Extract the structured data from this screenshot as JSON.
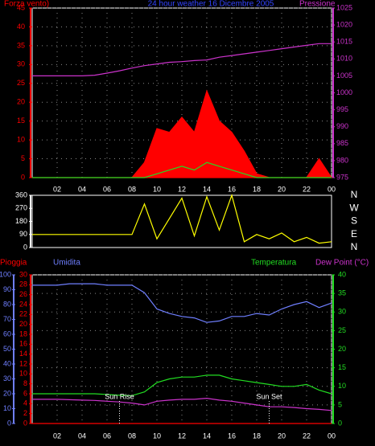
{
  "chart_data": [
    {
      "type": "line",
      "title": "24 hour weather 16 Dicembre 2005",
      "x": [
        0,
        1,
        2,
        3,
        4,
        5,
        6,
        7,
        8,
        9,
        10,
        11,
        12,
        13,
        14,
        15,
        16,
        17,
        18,
        19,
        20,
        21,
        22,
        23,
        24
      ],
      "xlim": [
        0,
        24
      ],
      "xticks": [
        {
          "value": 2,
          "label": "02"
        },
        {
          "value": 4,
          "label": "04"
        },
        {
          "value": 6,
          "label": "06"
        },
        {
          "value": 8,
          "label": "08"
        },
        10,
        12,
        14,
        16,
        18,
        20,
        22,
        {
          "value": 24,
          "label": "00"
        }
      ],
      "ylim": [
        0,
        45
      ],
      "yticks": [
        0,
        5,
        10,
        15,
        20,
        25,
        30,
        35,
        40,
        45
      ],
      "yaxis_color": "#ff0000",
      "y2lim": [
        975,
        1025
      ],
      "y2ticks": [
        975,
        980,
        985,
        990,
        995,
        1000,
        1005,
        1010,
        1015,
        1020,
        1025
      ],
      "y2axis_color": "#cc33cc",
      "grid": "y",
      "series": [
        {
          "name": "Forza vento)",
          "color": "#ff0000",
          "kind": "area",
          "axis": "y",
          "values": [
            0,
            0,
            0,
            0,
            0,
            0,
            0,
            0,
            0,
            4,
            13,
            12,
            16,
            12,
            23,
            15,
            12,
            7,
            1,
            0,
            0,
            0,
            0,
            5,
            0
          ]
        },
        {
          "color": "#22dd22",
          "kind": "line",
          "axis": "y",
          "values": [
            0,
            0,
            0,
            0,
            0,
            0,
            0,
            0,
            0,
            0,
            1,
            2,
            3,
            2,
            4,
            3,
            2,
            1,
            0,
            0,
            0,
            0,
            0,
            0,
            0
          ]
        },
        {
          "name": "Pressione",
          "color": "#cc33cc",
          "kind": "line",
          "axis": "y2",
          "values": [
            1005,
            1005,
            1005,
            1005,
            1005,
            1005.2,
            1005.8,
            1006.5,
            1007.3,
            1008,
            1008.5,
            1009,
            1009.2,
            1009.5,
            1009.7,
            1010.5,
            1011,
            1011.5,
            1012,
            1012.5,
            1013,
            1013.5,
            1014,
            1014.5,
            1014.5
          ]
        }
      ]
    },
    {
      "type": "line",
      "x": [
        0,
        1,
        2,
        3,
        4,
        5,
        6,
        7,
        8,
        9,
        10,
        11,
        12,
        13,
        14,
        15,
        16,
        17,
        18,
        19,
        20,
        21,
        22,
        23,
        24
      ],
      "xlim": [
        0,
        24
      ],
      "ylim": [
        0,
        360
      ],
      "yticks": [
        0,
        90,
        180,
        270,
        360
      ],
      "yaxis_color": "#ffffff",
      "y2lim": [
        0,
        360
      ],
      "y2ticks": [
        {
          "value": 0,
          "label": "N"
        },
        {
          "value": 90,
          "label": "E"
        },
        {
          "value": 180,
          "label": "S"
        },
        {
          "value": 270,
          "label": "W"
        },
        {
          "value": 360,
          "label": "N"
        }
      ],
      "y2axis_color": "#ffffff",
      "series": [
        {
          "color": "#ffff00",
          "kind": "line",
          "axis": "y",
          "values": [
            90,
            90,
            90,
            90,
            90,
            90,
            90,
            90,
            90,
            300,
            60,
            200,
            340,
            80,
            350,
            120,
            360,
            40,
            90,
            60,
            100,
            40,
            70,
            30,
            40
          ]
        }
      ]
    },
    {
      "type": "line",
      "x": [
        0,
        1,
        2,
        3,
        4,
        5,
        6,
        7,
        8,
        9,
        10,
        11,
        12,
        13,
        14,
        15,
        16,
        17,
        18,
        19,
        20,
        21,
        22,
        23,
        24
      ],
      "xlim": [
        0,
        24
      ],
      "xticks": [
        {
          "value": 2,
          "label": "02"
        },
        {
          "value": 4,
          "label": "04"
        },
        {
          "value": 6,
          "label": "06"
        },
        {
          "value": 8,
          "label": "08"
        },
        10,
        12,
        14,
        16,
        18,
        20,
        22,
        {
          "value": 24,
          "label": "00"
        }
      ],
      "ylim": [
        0,
        30
      ],
      "yticks": [
        0,
        2,
        4,
        6,
        8,
        10,
        12,
        14,
        16,
        18,
        20,
        22,
        24,
        26,
        28,
        30
      ],
      "yaxis_color": "#ff0000",
      "y2lim": [
        0,
        40
      ],
      "y2ticks": [
        0,
        5,
        10,
        15,
        20,
        25,
        30,
        35,
        40
      ],
      "y2axis_color": "#22dd22",
      "y3lim": [
        0,
        100
      ],
      "y3ticks": [
        0,
        10,
        20,
        30,
        40,
        50,
        60,
        70,
        80,
        90,
        100
      ],
      "y3axis_color": "#6f7fff",
      "grid": "y2",
      "annotations": [
        {
          "text": "Sun Rise",
          "x": 7
        },
        {
          "text": "Sun Set",
          "x": 19
        }
      ],
      "series": [
        {
          "name": "Pioggia",
          "color": "#ff0000",
          "kind": "line",
          "axis": "y",
          "values": [
            0,
            0,
            0,
            0,
            0,
            0,
            0,
            0,
            0,
            0,
            0,
            0,
            0,
            0,
            0,
            0,
            0,
            0,
            0,
            0,
            0,
            0,
            0,
            0,
            0
          ]
        },
        {
          "name": "Umidita",
          "color": "#6f7fff",
          "kind": "line",
          "axis": "y3",
          "values": [
            93,
            93,
            93,
            94,
            94,
            94,
            93,
            93,
            93,
            88,
            77,
            74,
            72,
            71,
            68,
            69,
            72,
            72,
            74,
            73,
            77,
            80,
            82,
            78,
            81
          ]
        },
        {
          "name": "Temperatura",
          "color": "#22dd22",
          "kind": "line",
          "axis": "y2",
          "values": [
            8,
            8,
            8,
            8,
            8,
            8,
            7.8,
            7.6,
            7.5,
            8.5,
            11,
            12,
            12.5,
            12.5,
            13,
            13,
            12,
            11.5,
            11,
            10.5,
            10,
            10,
            10.5,
            9,
            8
          ]
        },
        {
          "name": "Dew Point (°C)",
          "color": "#cc33cc",
          "kind": "line",
          "axis": "y2",
          "values": [
            6.5,
            6.5,
            6.5,
            6.4,
            6.3,
            6.2,
            6,
            5.8,
            5.5,
            5,
            6,
            6.3,
            6.5,
            6.5,
            6.8,
            6.3,
            6,
            5.5,
            5,
            4.5,
            4.5,
            4.3,
            4,
            3.8,
            3.5
          ]
        }
      ]
    }
  ]
}
